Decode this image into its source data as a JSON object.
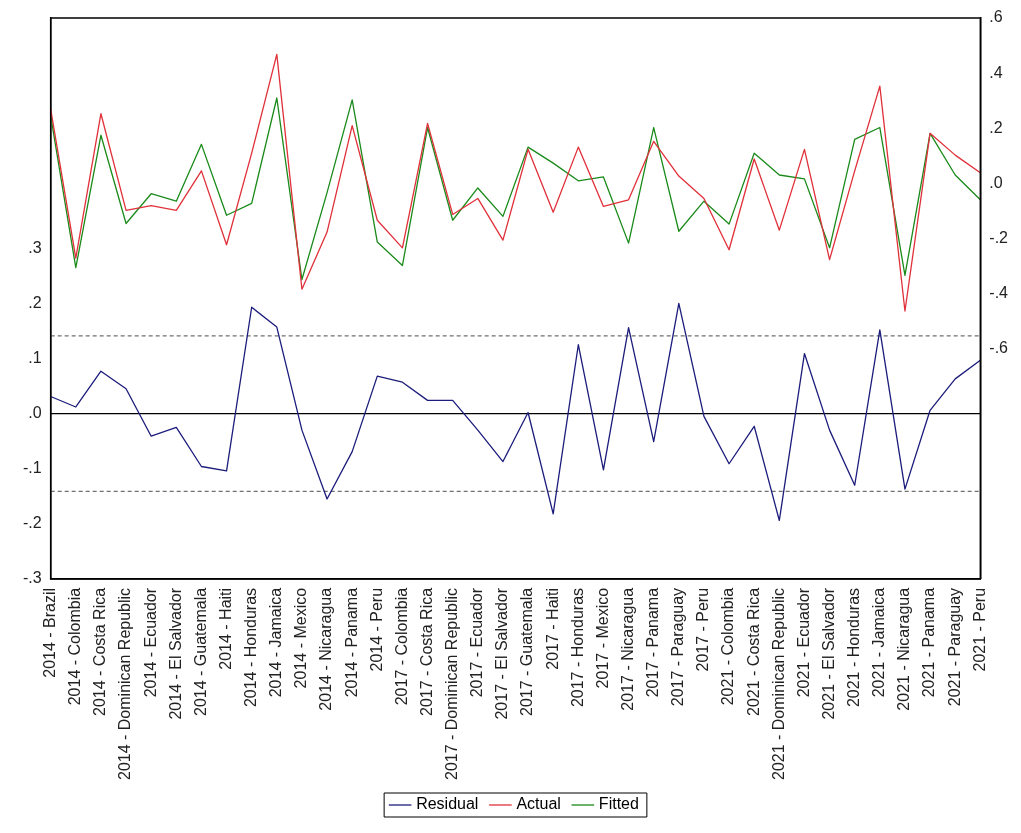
{
  "chart_data": {
    "type": "line",
    "categories": [
      "2014 - Brazil",
      "2014 - Colombia",
      "2014 - Costa Rica",
      "2014 - Dominican Republic",
      "2014 - Ecuador",
      "2014 - El Salvador",
      "2014 - Guatemala",
      "2014 - Haiti",
      "2014 - Honduras",
      "2014 - Jamaica",
      "2014 - Mexico",
      "2014 - Nicaragua",
      "2014 - Panama",
      "2014 - Peru",
      "2017 - Colombia",
      "2017 - Costa Rica",
      "2017 - Dominican Republic",
      "2017 - Ecuador",
      "2017 - El Salvador",
      "2017 - Guatemala",
      "2017 - Haiti",
      "2017 - Honduras",
      "2017 - Mexico",
      "2017 - Nicaragua",
      "2017 - Panama",
      "2017 - Paraguay",
      "2017 - Peru",
      "2021 - Colombia",
      "2021 - Costa Rica",
      "2021 - Dominican Republic",
      "2021 - Ecuador",
      "2021 - El Salvador",
      "2021 - Honduras",
      "2021 - Jamaica",
      "2021 - Nicaragua",
      "2021 - Panama",
      "2021 - Paraguay",
      "2021 - Peru"
    ],
    "series": [
      {
        "name": "Residual",
        "color": "#1c1c7c",
        "values": [
          0.031,
          0.012,
          0.077,
          0.045,
          -0.041,
          -0.025,
          -0.096,
          -0.104,
          0.193,
          0.157,
          -0.03,
          -0.155,
          -0.069,
          0.068,
          0.057,
          0.024,
          0.024,
          -0.03,
          -0.087,
          0.002,
          -0.182,
          0.125,
          -0.102,
          0.156,
          -0.051,
          0.2,
          -0.005,
          -0.091,
          -0.023,
          -0.194,
          0.109,
          -0.03,
          -0.13,
          0.152,
          -0.137,
          0.006,
          0.063,
          0.097
        ]
      },
      {
        "name": "Actual",
        "color": "#e0303a",
        "axis": "y2",
        "values": [
          0.27,
          -0.27,
          0.253,
          -0.097,
          -0.08,
          -0.097,
          0.046,
          -0.222,
          0.11,
          0.468,
          -0.383,
          -0.176,
          0.21,
          -0.133,
          -0.233,
          0.218,
          -0.112,
          -0.054,
          -0.205,
          0.124,
          -0.104,
          0.132,
          -0.083,
          -0.059,
          0.153,
          0.027,
          -0.054,
          -0.24,
          0.089,
          -0.169,
          0.124,
          -0.276,
          0.046,
          0.353,
          -0.462,
          0.182,
          0.103,
          0.039
        ]
      },
      {
        "name": "Fitted",
        "color": "#1a8a1a",
        "axis": "y2",
        "values": [
          0.245,
          -0.305,
          0.175,
          -0.145,
          -0.037,
          -0.064,
          0.142,
          -0.115,
          -0.072,
          0.31,
          -0.348,
          -0.033,
          0.303,
          -0.212,
          -0.297,
          0.203,
          -0.133,
          -0.016,
          -0.119,
          0.132,
          0.074,
          0.01,
          0.024,
          -0.216,
          0.203,
          -0.173,
          -0.064,
          -0.147,
          0.11,
          0.031,
          0.017,
          -0.233,
          0.16,
          0.203,
          -0.333,
          0.182,
          0.031,
          -0.059
        ]
      }
    ],
    "ylim": [
      -0.3,
      0.718
    ],
    "yticks": [
      {
        "value": -0.3,
        "label": "-.3"
      },
      {
        "value": -0.2,
        "label": "-.2"
      },
      {
        "value": -0.1,
        "label": "-.1"
      },
      {
        "value": 0,
        "label": ".0"
      },
      {
        "value": 0.1,
        "label": ".1"
      },
      {
        "value": 0.2,
        "label": ".2"
      },
      {
        "value": 0.3,
        "label": ".3"
      }
    ],
    "y2lim": [
      -1.433,
      0.6
    ],
    "y2ticks": [
      {
        "value": -0.6,
        "label": "-.6"
      },
      {
        "value": -0.4,
        "label": "-.4"
      },
      {
        "value": -0.2,
        "label": "-.2"
      },
      {
        "value": 0,
        "label": ".0"
      },
      {
        "value": 0.2,
        "label": ".2"
      },
      {
        "value": 0.4,
        "label": ".4"
      },
      {
        "value": 0.6,
        "label": ".6"
      }
    ],
    "ref_lines": [
      {
        "axis": "y",
        "value": 0,
        "color": "#000000",
        "line_style": "solid"
      },
      {
        "axis": "y",
        "value": 0.141,
        "color": "#707070",
        "line_style": "dashed"
      },
      {
        "axis": "y",
        "value": -0.141,
        "color": "#707070",
        "line_style": "dashed"
      }
    ],
    "grid": false,
    "legend": "bottom",
    "marker": "none",
    "line_style": "solid"
  }
}
